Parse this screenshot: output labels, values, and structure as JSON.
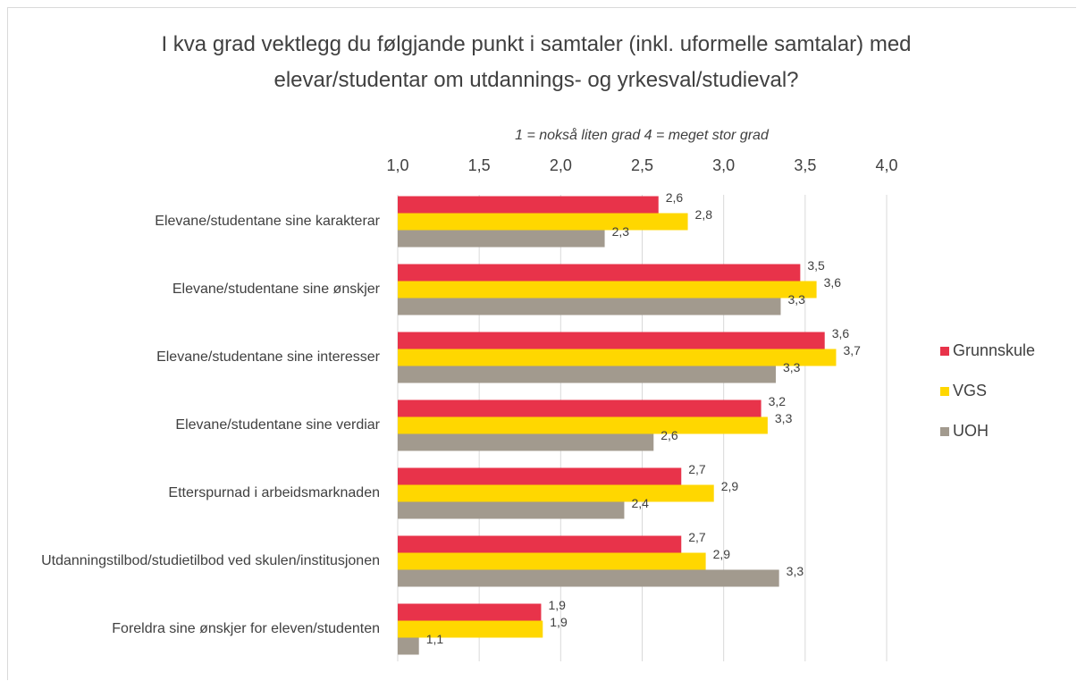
{
  "chart_data": {
    "type": "bar",
    "orientation": "horizontal",
    "title": "I kva grad vektlegg du følgjande punkt i samtaler (inkl. uformelle samtalar) med elevar/studentar om utdannings- og yrkesval/studieval?",
    "x_label": "1 = nokså liten grad 4 = meget stor grad",
    "categories": [
      "Elevane/studentane sine karakterar",
      "Elevane/studentane sine ønskjer",
      "Elevane/studentane sine interesser",
      "Elevane/studentane sine verdiar",
      "Etterspurnad i arbeidsmarknaden",
      "Utdanningstilbod/studietilbod ved skulen/institusjonen",
      "Foreldra sine ønskjer for eleven/studenten"
    ],
    "series": [
      {
        "name": "Grunnskule",
        "color": "#e8334a",
        "values": [
          2.6,
          3.47,
          3.62,
          3.23,
          2.74,
          2.74,
          1.88
        ],
        "value_labels": [
          "2,6",
          "3,5",
          "3,6",
          "3,2",
          "2,7",
          "2,7",
          "1,9"
        ]
      },
      {
        "name": "VGS",
        "color": "#ffd700",
        "values": [
          2.78,
          3.57,
          3.69,
          3.27,
          2.94,
          2.89,
          1.89
        ],
        "value_labels": [
          "2,8",
          "3,6",
          "3,7",
          "3,3",
          "2,9",
          "2,9",
          "1,9"
        ]
      },
      {
        "name": "UOH",
        "color": "#a29a8e",
        "values": [
          2.27,
          3.35,
          3.32,
          2.57,
          2.39,
          3.34,
          1.13
        ],
        "value_labels": [
          "2,3",
          "3,3",
          "3,3",
          "2,6",
          "2,4",
          "3,3",
          "1,1"
        ]
      }
    ],
    "xlim": [
      1,
      4
    ],
    "xticks": [
      {
        "value": 1,
        "label": "1,0"
      },
      {
        "value": 1.5,
        "label": "1,5"
      },
      {
        "value": 2,
        "label": "2,0"
      },
      {
        "value": 2.5,
        "label": "2,5"
      },
      {
        "value": 3,
        "label": "3,0"
      },
      {
        "value": 3.5,
        "label": "3,5"
      },
      {
        "value": 4,
        "label": "4,0"
      }
    ],
    "grid": true,
    "legend": "right"
  }
}
